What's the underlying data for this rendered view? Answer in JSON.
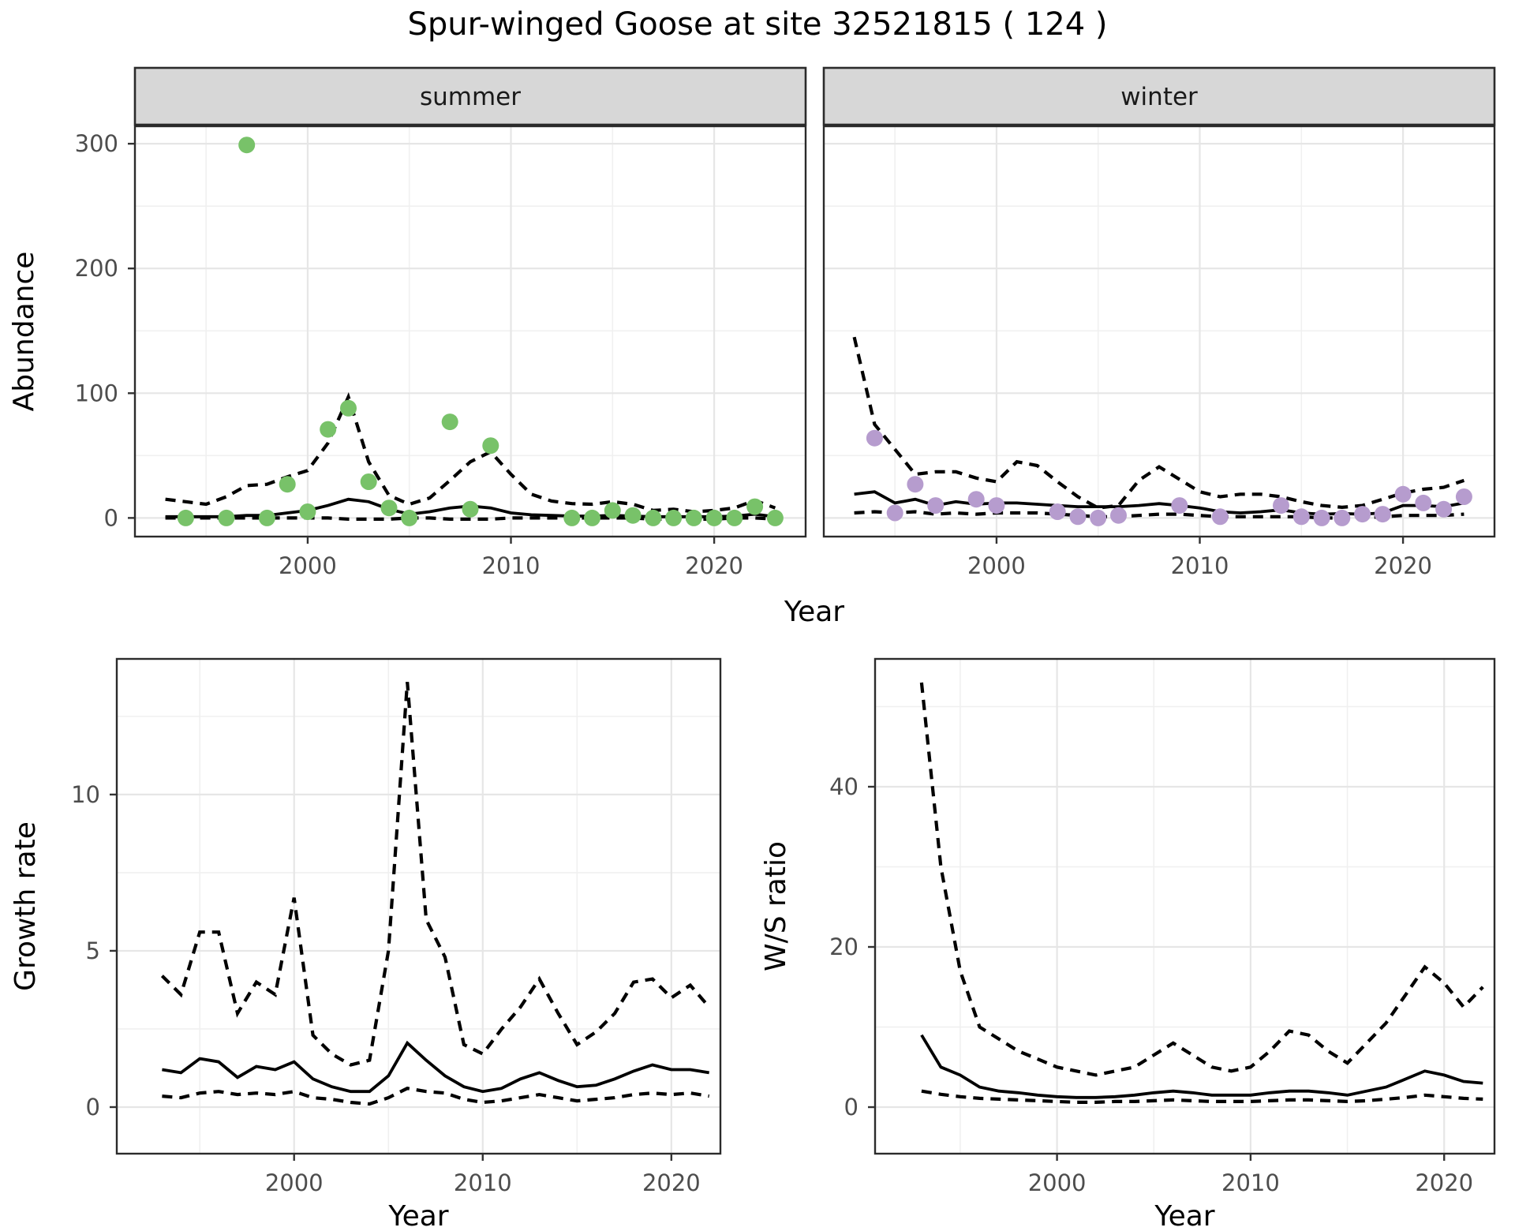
{
  "title": "Spur-winged Goose at site 32521815 ( 124 )",
  "axis_titles": {
    "x": "Year",
    "abundance": "Abundance",
    "growth": "Growth rate",
    "ws": "W/S ratio"
  },
  "facet_labels": {
    "summer": "summer",
    "winter": "winter"
  },
  "colors": {
    "summer_point": "#78c269",
    "winter_point": "#b69cce",
    "line": "#000000",
    "grid_major": "#e6e6e6",
    "grid_minor": "#f0f0f0",
    "panel_border": "#2b2b2b",
    "strip_fill": "#d7d7d7",
    "axis_text": "#4d4d4d",
    "tick_mark": "#333333"
  },
  "chart_data": [
    {
      "id": "abundance-summer",
      "type": "scatter",
      "facet": "summer",
      "xlabel": "Year",
      "ylabel": "Abundance",
      "point_name": "summer-point",
      "point_color_key": "summer_point",
      "xlim": [
        1991.5,
        2024.5
      ],
      "ylim": [
        -14.95,
        314.0
      ],
      "x_ticks": [
        2000,
        2010,
        2020
      ],
      "x_minor": [
        1995,
        2005,
        2015
      ],
      "y_ticks": [
        0,
        100,
        200,
        300
      ],
      "y_minor": [
        50,
        150,
        250
      ],
      "years": [
        1993,
        1994,
        1995,
        1996,
        1997,
        1998,
        1999,
        2000,
        2001,
        2002,
        2003,
        2004,
        2005,
        2006,
        2007,
        2008,
        2009,
        2010,
        2011,
        2012,
        2013,
        2014,
        2015,
        2016,
        2017,
        2018,
        2019,
        2020,
        2021,
        2022,
        2023
      ],
      "fit": [
        1,
        1,
        1,
        1,
        2,
        2,
        4,
        6,
        10,
        15,
        13,
        7,
        3,
        5,
        8,
        9.5,
        8,
        4,
        2.5,
        2,
        1.5,
        1.5,
        2,
        1.5,
        1,
        1,
        1,
        1,
        1.5,
        3,
        1
      ],
      "upper": [
        15,
        13,
        11,
        17,
        26,
        27,
        33,
        38,
        60,
        97,
        45,
        18,
        11,
        16,
        30,
        45,
        53,
        35,
        19,
        13.5,
        11.5,
        11,
        13,
        11,
        6,
        7,
        5,
        6,
        8,
        14,
        8
      ],
      "lower": [
        0,
        0,
        0,
        0,
        0,
        0,
        0,
        0,
        0,
        -1,
        -1,
        -1,
        0,
        0,
        -1,
        -1,
        -1,
        0,
        0,
        0,
        0,
        0,
        0,
        0,
        -1,
        -1,
        -1,
        -1,
        0,
        0,
        -1
      ],
      "points": [
        [
          1994,
          0
        ],
        [
          1996,
          0
        ],
        [
          1997,
          299
        ],
        [
          1998,
          0
        ],
        [
          1999,
          27
        ],
        [
          2000,
          5
        ],
        [
          2001,
          71
        ],
        [
          2002,
          88
        ],
        [
          2003,
          29
        ],
        [
          2004,
          8
        ],
        [
          2005,
          0
        ],
        [
          2007,
          77
        ],
        [
          2008,
          7
        ],
        [
          2009,
          58
        ],
        [
          2013,
          0
        ],
        [
          2014,
          0
        ],
        [
          2015,
          6
        ],
        [
          2016,
          2
        ],
        [
          2017,
          0
        ],
        [
          2018,
          0
        ],
        [
          2019,
          0
        ],
        [
          2020,
          0
        ],
        [
          2021,
          0
        ],
        [
          2022,
          9
        ],
        [
          2023,
          0
        ]
      ]
    },
    {
      "id": "abundance-winter",
      "type": "scatter",
      "facet": "winter",
      "xlabel": "Year",
      "ylabel": "Abundance",
      "point_name": "winter-point",
      "point_color_key": "winter_point",
      "xlim": [
        1991.5,
        2024.5
      ],
      "ylim": [
        -14.95,
        314.0
      ],
      "x_ticks": [
        2000,
        2010,
        2020
      ],
      "x_minor": [
        1995,
        2005,
        2015
      ],
      "y_ticks": [
        0,
        100,
        200,
        300
      ],
      "y_minor": [
        50,
        150,
        250
      ],
      "years": [
        1993,
        1994,
        1995,
        1996,
        1997,
        1998,
        1999,
        2000,
        2001,
        2002,
        2003,
        2004,
        2005,
        2006,
        2007,
        2008,
        2009,
        2010,
        2011,
        2012,
        2013,
        2014,
        2015,
        2016,
        2017,
        2018,
        2019,
        2020,
        2021,
        2022,
        2023
      ],
      "fit": [
        19,
        21,
        12,
        15,
        10,
        13,
        11,
        12,
        12,
        11,
        10,
        9,
        9,
        9,
        10,
        11.5,
        10,
        8,
        5,
        4,
        5,
        6.5,
        4,
        3,
        3.5,
        3,
        4,
        10,
        10,
        9,
        12
      ],
      "upper": [
        145,
        75,
        55,
        35,
        37,
        37,
        32,
        29,
        45,
        42,
        29,
        17,
        8,
        10,
        30,
        41,
        31,
        21,
        17,
        19,
        19,
        17,
        13,
        10,
        8.5,
        10,
        15,
        20,
        23,
        24.5,
        30
      ],
      "lower": [
        4,
        5,
        4,
        5,
        3,
        4,
        3,
        4,
        4,
        4,
        3,
        2,
        1,
        1,
        2,
        3,
        3,
        2,
        1,
        1,
        1,
        1,
        1,
        0,
        0,
        0,
        1,
        2,
        2,
        2,
        3
      ],
      "points": [
        [
          1994,
          64
        ],
        [
          1995,
          4
        ],
        [
          1996,
          27
        ],
        [
          1997,
          10
        ],
        [
          1999,
          15
        ],
        [
          2000,
          10
        ],
        [
          2003,
          5
        ],
        [
          2004,
          1
        ],
        [
          2005,
          0
        ],
        [
          2006,
          2
        ],
        [
          2009,
          10
        ],
        [
          2011,
          1
        ],
        [
          2014,
          10
        ],
        [
          2015,
          1
        ],
        [
          2016,
          0
        ],
        [
          2017,
          0
        ],
        [
          2018,
          3
        ],
        [
          2019,
          3
        ],
        [
          2020,
          19
        ],
        [
          2021,
          12
        ],
        [
          2022,
          7
        ],
        [
          2023,
          17
        ]
      ]
    },
    {
      "id": "growth-rate",
      "type": "line",
      "xlabel": "Year",
      "ylabel": "Growth rate",
      "xlim": [
        1990.6,
        2022.6
      ],
      "ylim": [
        -1.49,
        14.34
      ],
      "x_ticks": [
        2000,
        2010,
        2020
      ],
      "x_minor": [
        1995,
        2005,
        2015
      ],
      "y_ticks": [
        0,
        5,
        10
      ],
      "y_minor": [
        2.5,
        7.5,
        12.5
      ],
      "years": [
        1993,
        1994,
        1995,
        1996,
        1997,
        1998,
        1999,
        2000,
        2001,
        2002,
        2003,
        2004,
        2005,
        2006,
        2007,
        2008,
        2009,
        2010,
        2011,
        2012,
        2013,
        2014,
        2015,
        2016,
        2017,
        2018,
        2019,
        2020,
        2021,
        2022
      ],
      "fit": [
        1.2,
        1.1,
        1.55,
        1.45,
        0.95,
        1.3,
        1.2,
        1.45,
        0.9,
        0.65,
        0.5,
        0.5,
        1.0,
        2.05,
        1.5,
        1.0,
        0.65,
        0.5,
        0.6,
        0.9,
        1.1,
        0.85,
        0.65,
        0.7,
        0.9,
        1.15,
        1.35,
        1.2,
        1.2,
        1.1
      ],
      "upper": [
        4.2,
        3.6,
        5.6,
        5.6,
        3.0,
        4.0,
        3.6,
        6.7,
        2.3,
        1.7,
        1.35,
        1.5,
        5.0,
        13.6,
        6.0,
        4.8,
        2.0,
        1.7,
        2.5,
        3.2,
        4.1,
        3.0,
        2.0,
        2.4,
        3.0,
        4.0,
        4.1,
        3.5,
        3.9,
        3.2
      ],
      "lower": [
        0.35,
        0.3,
        0.45,
        0.5,
        0.4,
        0.45,
        0.4,
        0.5,
        0.3,
        0.25,
        0.15,
        0.1,
        0.3,
        0.6,
        0.5,
        0.45,
        0.25,
        0.15,
        0.2,
        0.3,
        0.4,
        0.3,
        0.2,
        0.25,
        0.3,
        0.4,
        0.45,
        0.4,
        0.45,
        0.35
      ],
      "points": []
    },
    {
      "id": "ws-ratio",
      "type": "line",
      "xlabel": "Year",
      "ylabel": "W/S ratio",
      "xlim": [
        1990.6,
        2022.6
      ],
      "ylim": [
        -5.81,
        55.96
      ],
      "x_ticks": [
        2000,
        2010,
        2020
      ],
      "x_minor": [
        1995,
        2005,
        2015
      ],
      "y_ticks": [
        0,
        20,
        40
      ],
      "y_minor": [
        10,
        30,
        50
      ],
      "years": [
        1993,
        1994,
        1995,
        1996,
        1997,
        1998,
        1999,
        2000,
        2001,
        2002,
        2003,
        2004,
        2005,
        2006,
        2007,
        2008,
        2009,
        2010,
        2011,
        2012,
        2013,
        2014,
        2015,
        2016,
        2017,
        2018,
        2019,
        2020,
        2021,
        2022
      ],
      "fit": [
        9,
        5,
        4,
        2.5,
        2,
        1.8,
        1.5,
        1.3,
        1.2,
        1.2,
        1.3,
        1.5,
        1.8,
        2,
        1.8,
        1.5,
        1.5,
        1.5,
        1.8,
        2,
        2,
        1.8,
        1.5,
        2,
        2.5,
        3.5,
        4.5,
        4,
        3.2,
        3
      ],
      "upper": [
        53,
        30,
        17,
        10,
        8.5,
        7,
        6,
        5,
        4.5,
        4,
        4.5,
        5,
        6.5,
        8,
        6.5,
        5,
        4.5,
        5,
        7,
        9.5,
        9,
        7,
        5.5,
        8,
        10.5,
        14,
        17.5,
        15.5,
        12.5,
        15
      ],
      "lower": [
        2,
        1.6,
        1.3,
        1.1,
        1.0,
        0.9,
        0.8,
        0.7,
        0.6,
        0.6,
        0.7,
        0.7,
        0.8,
        0.9,
        0.8,
        0.7,
        0.7,
        0.7,
        0.8,
        0.9,
        0.9,
        0.8,
        0.7,
        0.8,
        1.0,
        1.2,
        1.5,
        1.3,
        1.1,
        1.0
      ],
      "points": []
    }
  ]
}
